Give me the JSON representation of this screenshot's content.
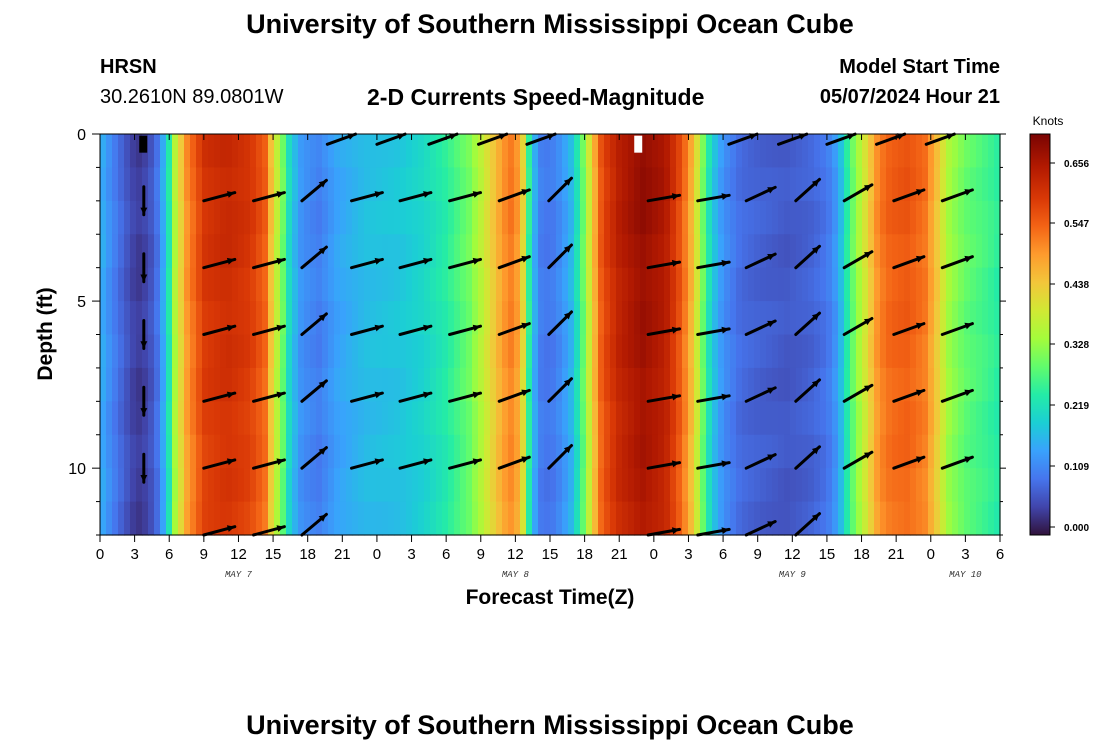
{
  "header": {
    "title": "University of Southern Mississippi Ocean Cube",
    "station": "HRSN",
    "coordinates": "30.2610N  89.0801W",
    "subtitle": "2-D Currents Speed-Magnitude",
    "model_start_label": "Model Start Time",
    "model_start_value": "05/07/2024 Hour 21"
  },
  "footer": {
    "title": "University of Southern Mississippi Ocean Cube"
  },
  "chart_data": {
    "type": "heatmap",
    "title": "2-D Currents Speed-Magnitude",
    "xlabel": "Forecast Time(Z)",
    "ylabel": "Depth (ft)",
    "x_unit": "hours since May 7 00Z",
    "xlim": [
      0,
      78
    ],
    "ylim": [
      0,
      12
    ],
    "y_ticks": [
      0,
      5,
      10
    ],
    "x_ticks": [
      {
        "h": 0,
        "label": "0"
      },
      {
        "h": 3,
        "label": "3"
      },
      {
        "h": 6,
        "label": "6"
      },
      {
        "h": 9,
        "label": "9"
      },
      {
        "h": 12,
        "label": "12"
      },
      {
        "h": 15,
        "label": "15"
      },
      {
        "h": 18,
        "label": "18"
      },
      {
        "h": 21,
        "label": "21"
      },
      {
        "h": 24,
        "label": "0"
      },
      {
        "h": 27,
        "label": "3"
      },
      {
        "h": 30,
        "label": "6"
      },
      {
        "h": 33,
        "label": "9"
      },
      {
        "h": 36,
        "label": "12"
      },
      {
        "h": 39,
        "label": "15"
      },
      {
        "h": 42,
        "label": "18"
      },
      {
        "h": 45,
        "label": "21"
      },
      {
        "h": 48,
        "label": "0"
      },
      {
        "h": 51,
        "label": "3"
      },
      {
        "h": 54,
        "label": "6"
      },
      {
        "h": 57,
        "label": "9"
      },
      {
        "h": 60,
        "label": "12"
      },
      {
        "h": 63,
        "label": "15"
      },
      {
        "h": 66,
        "label": "18"
      },
      {
        "h": 69,
        "label": "21"
      },
      {
        "h": 72,
        "label": "0"
      },
      {
        "h": 75,
        "label": "3"
      },
      {
        "h": 78,
        "label": "6"
      }
    ],
    "date_labels": [
      {
        "h": 12,
        "label": "MAY 7"
      },
      {
        "h": 36,
        "label": "MAY 8"
      },
      {
        "h": 60,
        "label": "MAY 9"
      },
      {
        "h": 75,
        "label": "MAY 10"
      }
    ],
    "colorbar": {
      "label": "Knots",
      "ticks": [
        "0.656",
        "0.547",
        "0.438",
        "0.328",
        "0.219",
        "0.109",
        "0.000"
      ],
      "min": 0.0,
      "max": 0.7
    },
    "speed_profile": {
      "hours": [
        0,
        1,
        2,
        2.8,
        3.5,
        4.3,
        5,
        5.8,
        6.5,
        7.5,
        9,
        11,
        13,
        14.3,
        15,
        15.7,
        16.5,
        17.5,
        19,
        20.5,
        23,
        26,
        28,
        30,
        32,
        33,
        34.5,
        35.5,
        36.5,
        37,
        37.5,
        38.2,
        39,
        40,
        41,
        42,
        42.8,
        43.5,
        45,
        47,
        49,
        50.5,
        51.5,
        52.3,
        53,
        54,
        55.5,
        57,
        59.5,
        61.5,
        63,
        64,
        65,
        66.5,
        67.5,
        68.5,
        70,
        71.5,
        72.5,
        73.5,
        75,
        77,
        78
      ],
      "knots": [
        0.17,
        0.12,
        0.08,
        0.05,
        0.04,
        0.06,
        0.1,
        0.2,
        0.36,
        0.5,
        0.6,
        0.62,
        0.6,
        0.55,
        0.42,
        0.33,
        0.2,
        0.13,
        0.11,
        0.15,
        0.18,
        0.19,
        0.21,
        0.25,
        0.31,
        0.37,
        0.47,
        0.53,
        0.48,
        0.3,
        0.18,
        0.11,
        0.1,
        0.13,
        0.18,
        0.32,
        0.46,
        0.57,
        0.64,
        0.68,
        0.65,
        0.55,
        0.44,
        0.3,
        0.2,
        0.13,
        0.09,
        0.08,
        0.07,
        0.08,
        0.1,
        0.15,
        0.28,
        0.42,
        0.52,
        0.55,
        0.56,
        0.53,
        0.45,
        0.35,
        0.3,
        0.27,
        0.25
      ]
    },
    "vectors": {
      "depths": [
        2,
        4,
        6,
        8,
        10,
        12
      ],
      "surface_depth": 0.1,
      "surface_hours": [
        19.7,
        24,
        28.5,
        32.8,
        37,
        54.5,
        58.8,
        63,
        67.3,
        71.6
      ],
      "directions_deg": [
        {
          "h": 3.8,
          "deg": 270
        },
        {
          "h": 9,
          "deg": 15
        },
        {
          "h": 13.3,
          "deg": 15
        },
        {
          "h": 17.5,
          "deg": 40
        },
        {
          "h": 21.8,
          "deg": 15
        },
        {
          "h": 26,
          "deg": 15
        },
        {
          "h": 30.3,
          "deg": 15
        },
        {
          "h": 34.6,
          "deg": 20
        },
        {
          "h": 38.9,
          "deg": 45
        },
        {
          "h": 47.5,
          "deg": 10
        },
        {
          "h": 51.8,
          "deg": 10
        },
        {
          "h": 56,
          "deg": 25
        },
        {
          "h": 60.3,
          "deg": 42
        },
        {
          "h": 64.5,
          "deg": 30
        },
        {
          "h": 68.8,
          "deg": 20
        },
        {
          "h": 73,
          "deg": 20
        }
      ]
    }
  }
}
